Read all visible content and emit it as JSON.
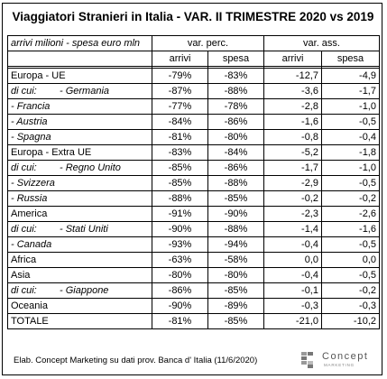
{
  "title": "Viaggiatori Stranieri in Italia - VAR.  II TRIMESTRE 2020 vs 2019",
  "unit_label": "arrivi milioni - spesa euro mln",
  "groups": {
    "perc": "var. perc.",
    "ass": "var. ass."
  },
  "columns": {
    "arrivi": "arrivi",
    "spesa": "spesa"
  },
  "rows": [
    {
      "prefix": "",
      "name": "Europa - UE",
      "perc_arrivi": "-79%",
      "perc_spesa": "-83%",
      "ass_arrivi": "-12,7",
      "ass_spesa": "-4,9"
    },
    {
      "prefix": "di cui:",
      "name": "- Germania",
      "perc_arrivi": "-87%",
      "perc_spesa": "-88%",
      "ass_arrivi": "-3,6",
      "ass_spesa": "-1,7"
    },
    {
      "prefix": "",
      "name": "- Francia",
      "perc_arrivi": "-77%",
      "perc_spesa": "-78%",
      "ass_arrivi": "-2,8",
      "ass_spesa": "-1,0"
    },
    {
      "prefix": "",
      "name": "- Austria",
      "perc_arrivi": "-84%",
      "perc_spesa": "-86%",
      "ass_arrivi": "-1,6",
      "ass_spesa": "-0,5"
    },
    {
      "prefix": "",
      "name": "- Spagna",
      "perc_arrivi": "-81%",
      "perc_spesa": "-80%",
      "ass_arrivi": "-0,8",
      "ass_spesa": "-0,4"
    },
    {
      "prefix": "",
      "name": "Europa - Extra UE",
      "perc_arrivi": "-83%",
      "perc_spesa": "-84%",
      "ass_arrivi": "-5,2",
      "ass_spesa": "-1,8"
    },
    {
      "prefix": "di cui:",
      "name": "- Regno Unito",
      "perc_arrivi": "-85%",
      "perc_spesa": "-86%",
      "ass_arrivi": "-1,7",
      "ass_spesa": "-1,0"
    },
    {
      "prefix": "",
      "name": "- Svizzera",
      "perc_arrivi": "-85%",
      "perc_spesa": "-88%",
      "ass_arrivi": "-2,9",
      "ass_spesa": "-0,5"
    },
    {
      "prefix": "",
      "name": "- Russia",
      "perc_arrivi": "-88%",
      "perc_spesa": "-85%",
      "ass_arrivi": "-0,2",
      "ass_spesa": "-0,2"
    },
    {
      "prefix": "",
      "name": "America",
      "perc_arrivi": "-91%",
      "perc_spesa": "-90%",
      "ass_arrivi": "-2,3",
      "ass_spesa": "-2,6"
    },
    {
      "prefix": "di cui:",
      "name": "- Stati Uniti",
      "perc_arrivi": "-90%",
      "perc_spesa": "-88%",
      "ass_arrivi": "-1,4",
      "ass_spesa": "-1,6"
    },
    {
      "prefix": "",
      "name": "- Canada",
      "perc_arrivi": "-93%",
      "perc_spesa": "-94%",
      "ass_arrivi": "-0,4",
      "ass_spesa": "-0,5"
    },
    {
      "prefix": "",
      "name": "Africa",
      "perc_arrivi": "-63%",
      "perc_spesa": "-58%",
      "ass_arrivi": "0,0",
      "ass_spesa": "0,0"
    },
    {
      "prefix": "",
      "name": "Asia",
      "perc_arrivi": "-80%",
      "perc_spesa": "-80%",
      "ass_arrivi": "-0,4",
      "ass_spesa": "-0,5"
    },
    {
      "prefix": "di cui:",
      "name": "- Giappone",
      "perc_arrivi": "-86%",
      "perc_spesa": "-85%",
      "ass_arrivi": "-0,1",
      "ass_spesa": "-0,2"
    },
    {
      "prefix": "",
      "name": "Oceania",
      "perc_arrivi": "-90%",
      "perc_spesa": "-89%",
      "ass_arrivi": "-0,3",
      "ass_spesa": "-0,3"
    },
    {
      "prefix": "",
      "name": "TOTALE",
      "perc_arrivi": "-81%",
      "perc_spesa": "-85%",
      "ass_arrivi": "-21,0",
      "ass_spesa": "-10,2"
    }
  ],
  "footer": "Elab. Concept Marketing su dati prov. Banca d' Italia (11/6/2020)",
  "logo": {
    "name": "Concept",
    "tagline": "MARKETING",
    "icon": "concept-logo-icon"
  }
}
